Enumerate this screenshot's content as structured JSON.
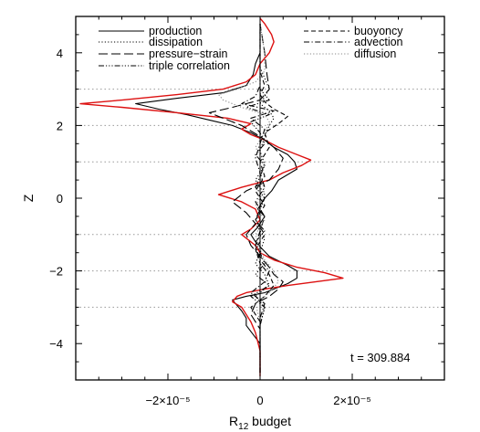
{
  "chart_data": {
    "type": "line",
    "title": "",
    "xlabel": "R",
    "xlabel_sub": "12",
    "xlabel_suffix": " budget",
    "ylabel": "Z",
    "xlim": [
      -4e-05,
      4e-05
    ],
    "ylim": [
      -5,
      5
    ],
    "xticks": [
      {
        "value": -2e-05,
        "label": "−2×10⁻⁵"
      },
      {
        "value": 0,
        "label": "0"
      },
      {
        "value": 2e-05,
        "label": "2×10⁻⁵"
      }
    ],
    "yticks": [
      {
        "value": -4,
        "label": "−4"
      },
      {
        "value": -2,
        "label": "−2"
      },
      {
        "value": 0,
        "label": "0"
      },
      {
        "value": 2,
        "label": "2"
      },
      {
        "value": 4,
        "label": "4"
      }
    ],
    "grid": false,
    "annotation": "t = 309.884",
    "horizontal_reference_lines": [
      3.0,
      2.0,
      1.0,
      -1.0,
      -2.0,
      -3.0
    ],
    "legend_placement": "top",
    "legend": [
      {
        "label": "production",
        "dash": "solid",
        "color": "#000000"
      },
      {
        "label": "dissipation",
        "dash": "dotted",
        "color": "#000000"
      },
      {
        "label": "pressure−strain",
        "dash": "longdash",
        "color": "#000000"
      },
      {
        "label": "triple correlation",
        "dash": "dashdotdotdot",
        "color": "#000000"
      },
      {
        "label": "buoyoncy",
        "dash": "dashed",
        "color": "#000000"
      },
      {
        "label": "advection",
        "dash": "dashdot",
        "color": "#000000"
      },
      {
        "label": "diffusion",
        "dash": "dotted",
        "color": "#888888"
      }
    ],
    "series": [
      {
        "dash": "solid",
        "color": "#000000",
        "z": [
          -4.8,
          -4.0,
          -3.5,
          -3.3,
          -3.1,
          -2.95,
          -2.8,
          -2.7,
          -2.6,
          -2.5,
          -2.35,
          -2.2,
          -2.0,
          -1.85,
          -1.6,
          -1.4,
          -1.2,
          -1.0,
          -0.8,
          -0.5,
          -0.3,
          0.0,
          0.2,
          0.5,
          0.8,
          1.0,
          1.2,
          1.4,
          1.6,
          1.8,
          2.0,
          2.15,
          2.3,
          2.45,
          2.6,
          2.75,
          2.9,
          3.1,
          3.4,
          3.7,
          4.0,
          4.8
        ],
        "x": [
          0.0,
          0.0,
          -3e-06,
          -3e-06,
          -4e-06,
          -5e-06,
          -6e-06,
          -3e-06,
          1e-06,
          3e-06,
          6e-06,
          8e-06,
          8e-06,
          6e-06,
          2e-06,
          5e-07,
          -1e-06,
          -2e-06,
          -5e-07,
          1e-06,
          -5e-07,
          1e-06,
          2.5e-06,
          4e-06,
          8e-06,
          7.5e-06,
          6e-06,
          3e-06,
          1e-06,
          -2e-06,
          -6e-06,
          -1.1e-05,
          -1.6e-05,
          -2.2e-05,
          -2.7e-05,
          -1.8e-05,
          -8e-06,
          -3e-06,
          -1.5e-06,
          -1e-06,
          0.0,
          0.0
        ]
      },
      {
        "dash": "solid",
        "color": "#dd1111",
        "z": [
          -4.9,
          -4.2,
          -3.7,
          -3.4,
          -3.2,
          -3.0,
          -2.85,
          -2.7,
          -2.6,
          -2.5,
          -2.4,
          -2.3,
          -2.2,
          -2.05,
          -1.9,
          -1.7,
          -1.5,
          -1.3,
          -1.1,
          -1.0,
          -0.85,
          -0.6,
          -0.3,
          -0.1,
          0.1,
          0.3,
          0.5,
          0.7,
          0.9,
          1.05,
          1.2,
          1.4,
          1.6,
          1.75,
          1.9,
          2.05,
          2.2,
          2.35,
          2.5,
          2.6,
          2.7,
          2.85,
          3.0,
          3.2,
          3.4,
          3.7,
          4.0,
          4.3,
          4.5,
          4.8,
          4.95
        ],
        "x": [
          0.0,
          0.0,
          -1e-06,
          -2e-06,
          -3e-06,
          -4e-06,
          -6e-06,
          -5e-06,
          -3e-06,
          1e-06,
          6e-06,
          1.2e-05,
          1.8e-05,
          1.4e-05,
          8e-06,
          3e-06,
          0.0,
          -1e-06,
          -3e-06,
          -4e-06,
          -2e-06,
          0.0,
          -1e-06,
          -4e-06,
          -9e-06,
          -4e-06,
          2e-06,
          5e-06,
          9e-06,
          1.1e-05,
          8e-06,
          4e-06,
          1e-06,
          -2e-06,
          -4e-06,
          -2e-06,
          -7e-06,
          -1.8e-05,
          -3e-05,
          -3.9e-05,
          -3e-05,
          -1.8e-05,
          -8e-06,
          -3e-06,
          -1e-06,
          0.0,
          2e-06,
          3e-06,
          2.5e-06,
          1e-06,
          0.0
        ]
      },
      {
        "dash": "longdash",
        "color": "#000000",
        "z": [
          -4.8,
          -3.6,
          -3.2,
          -2.9,
          -2.7,
          -2.5,
          -2.3,
          -2.1,
          -1.9,
          -1.6,
          -1.3,
          -1.0,
          -0.7,
          -0.4,
          -0.1,
          0.2,
          0.5,
          0.8,
          1.1,
          1.4,
          1.7,
          2.0,
          2.2,
          2.35,
          2.5,
          2.7,
          3.0,
          3.4,
          4.0,
          4.8
        ],
        "x": [
          0.0,
          0.0,
          -2e-06,
          -1e-06,
          2e-06,
          4e-06,
          5e-06,
          3e-06,
          2e-06,
          0.0,
          -2e-06,
          -3e-06,
          -1e-06,
          -3e-06,
          -6e-06,
          -3e-06,
          2e-06,
          4e-06,
          5e-06,
          3e-06,
          0.0,
          -4e-06,
          -8e-06,
          -1.1e-05,
          -6e-06,
          0.0,
          2e-06,
          1.5e-06,
          1e-06,
          0.0
        ]
      },
      {
        "dash": "dashdotdotdot",
        "color": "#000000",
        "z": [
          -4.8,
          -3.5,
          -3.0,
          -2.7,
          -2.4,
          -2.1,
          -1.8,
          -1.5,
          -1.2,
          -0.9,
          -0.6,
          -0.3,
          0.0,
          0.3,
          0.6,
          0.9,
          1.2,
          1.5,
          1.8,
          2.1,
          2.3,
          2.5,
          2.7,
          3.0,
          3.5,
          4.8
        ],
        "x": [
          0.0,
          0.0,
          1e-06,
          -2e-06,
          2e-06,
          -1e-06,
          1e-06,
          0.0,
          -1e-06,
          1e-06,
          -1e-06,
          0.0,
          1e-06,
          -1e-06,
          0.0,
          1e-06,
          -1e-06,
          1e-06,
          0.0,
          -2e-06,
          2e-06,
          -3e-06,
          2e-06,
          0.0,
          0.0,
          0.0
        ]
      },
      {
        "dash": "dashed",
        "color": "#000000",
        "z": [
          -4.8,
          -3.4,
          -3.0,
          -2.7,
          -2.4,
          -2.1,
          -1.8,
          -1.4,
          -1.0,
          -0.6,
          -0.2,
          0.2,
          0.6,
          1.0,
          1.4,
          1.8,
          2.05,
          2.25,
          2.45,
          2.65,
          2.85,
          3.1,
          3.5,
          4.8
        ],
        "x": [
          0.0,
          0.0,
          -2e-06,
          1e-06,
          3e-06,
          2e-06,
          0.0,
          -1e-06,
          1e-06,
          -1e-06,
          1e-06,
          -1e-06,
          1e-06,
          0.0,
          2e-06,
          1e-06,
          4e-06,
          6e-06,
          3e-06,
          1e-06,
          0.0,
          1e-06,
          0.0,
          0.0
        ]
      },
      {
        "dash": "dashdot",
        "color": "#000000",
        "z": [
          -4.8,
          -3.3,
          -2.9,
          -2.6,
          -2.3,
          -2.0,
          -1.7,
          -1.3,
          -0.9,
          -0.5,
          -0.1,
          0.3,
          0.7,
          1.1,
          1.5,
          1.9,
          2.2,
          2.4,
          2.6,
          2.8,
          3.1,
          3.5,
          4.8
        ],
        "x": [
          0.0,
          0.0,
          1e-06,
          -2e-06,
          1e-06,
          2e-06,
          0.0,
          -1e-06,
          0.0,
          1e-06,
          -1e-06,
          1e-06,
          0.0,
          -1e-06,
          0.0,
          1e-06,
          -2e-06,
          3e-06,
          -4e-06,
          -1e-06,
          0.0,
          0.0,
          0.0
        ]
      },
      {
        "dash": "dotted",
        "color": "#888888",
        "z": [
          -4.8,
          -3.4,
          -2.9,
          -2.6,
          -2.3,
          -2.0,
          -1.7,
          -1.4,
          -1.0,
          -0.6,
          -0.2,
          0.2,
          0.6,
          1.0,
          1.4,
          1.8,
          2.1,
          2.3,
          2.5,
          2.7,
          2.85,
          3.0,
          3.2,
          3.5,
          4.0,
          4.8
        ],
        "x": [
          0.0,
          0.0,
          -1e-06,
          2e-06,
          4e-06,
          3e-06,
          1e-06,
          0.0,
          -1e-06,
          1e-06,
          -1e-06,
          1e-06,
          0.0,
          1e-06,
          -1e-06,
          1e-06,
          2e-06,
          1e-06,
          -4e-06,
          -8e-06,
          -9e-06,
          -5e-06,
          -1e-06,
          1e-06,
          1e-06,
          0.0
        ]
      },
      {
        "dash": "dotted",
        "color": "#000000",
        "z": [
          -4.8,
          -3.5,
          -3.0,
          -2.7,
          -2.4,
          -2.1,
          -1.8,
          -1.5,
          -1.1,
          -0.7,
          -0.3,
          0.1,
          0.5,
          0.9,
          1.3,
          1.7,
          2.0,
          2.2,
          2.4,
          2.6,
          2.8,
          3.0,
          3.3,
          3.6,
          4.0,
          4.8
        ],
        "x": [
          0.0,
          0.0,
          1e-06,
          -1e-06,
          2e-06,
          1e-06,
          -1e-06,
          0.0,
          1e-06,
          -1e-06,
          0.0,
          1e-06,
          -1e-06,
          1e-06,
          0.0,
          1e-06,
          2e-06,
          3e-06,
          2e-06,
          0.0,
          1e-06,
          2e-06,
          1e-06,
          0.0,
          0.0,
          0.0
        ]
      }
    ]
  }
}
